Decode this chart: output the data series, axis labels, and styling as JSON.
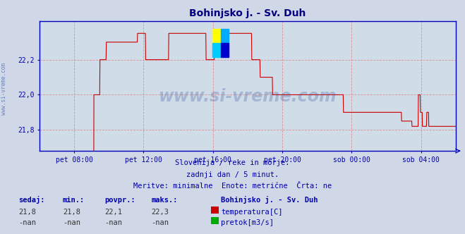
{
  "title": "Bohinjsko j. - Sv. Duh",
  "title_color": "#000080",
  "title_fontsize": 10,
  "background_color": "#d0d8e8",
  "plot_bg_color": "#d0dce8",
  "line_color": "#cc0000",
  "axis_color": "#0000bb",
  "grid_color": "#e08080",
  "tick_color": "#0000aa",
  "ylabel_vals": [
    21.8,
    22.0,
    22.2
  ],
  "ymin": 21.68,
  "ymax": 22.42,
  "xlabels": [
    "pet 08:00",
    "pet 12:00",
    "pet 16:00",
    "pet 20:00",
    "sob 00:00",
    "sob 04:00"
  ],
  "xtick_fracs": [
    0.0833,
    0.25,
    0.4167,
    0.5833,
    0.75,
    0.9167
  ],
  "watermark": "www.si-vreme.com",
  "watermark_color": "#4060a0",
  "watermark_alpha": 0.3,
  "subtitle1": "Slovenija / reke in morje.",
  "subtitle2": "zadnji dan / 5 minut.",
  "subtitle3": "Meritve: minimalne  Enote: metrične  Črta: ne",
  "subtitle_color": "#0000aa",
  "subtitle_fontsize": 7.5,
  "legend_title": "Bohinjsko j. - Sv. Duh",
  "legend_items": [
    {
      "label": "temperatura[C]",
      "color": "#cc0000"
    },
    {
      "label": "pretok[m3/s]",
      "color": "#00aa00"
    }
  ],
  "stats_headers": [
    "sedaj:",
    "min.:",
    "povpr.:",
    "maks.:"
  ],
  "stats_row1": [
    "21,8",
    "21,8",
    "22,1",
    "22,3"
  ],
  "stats_row2": [
    "-nan",
    "-nan",
    "-nan",
    "-nan"
  ],
  "stats_color": "#0000aa",
  "stats_fontsize": 7.5,
  "logo_colors": [
    "#ffff00",
    "#00aaff",
    "#00ccff",
    "#0000cc"
  ],
  "left_watermark": "www.si-vreme.com"
}
